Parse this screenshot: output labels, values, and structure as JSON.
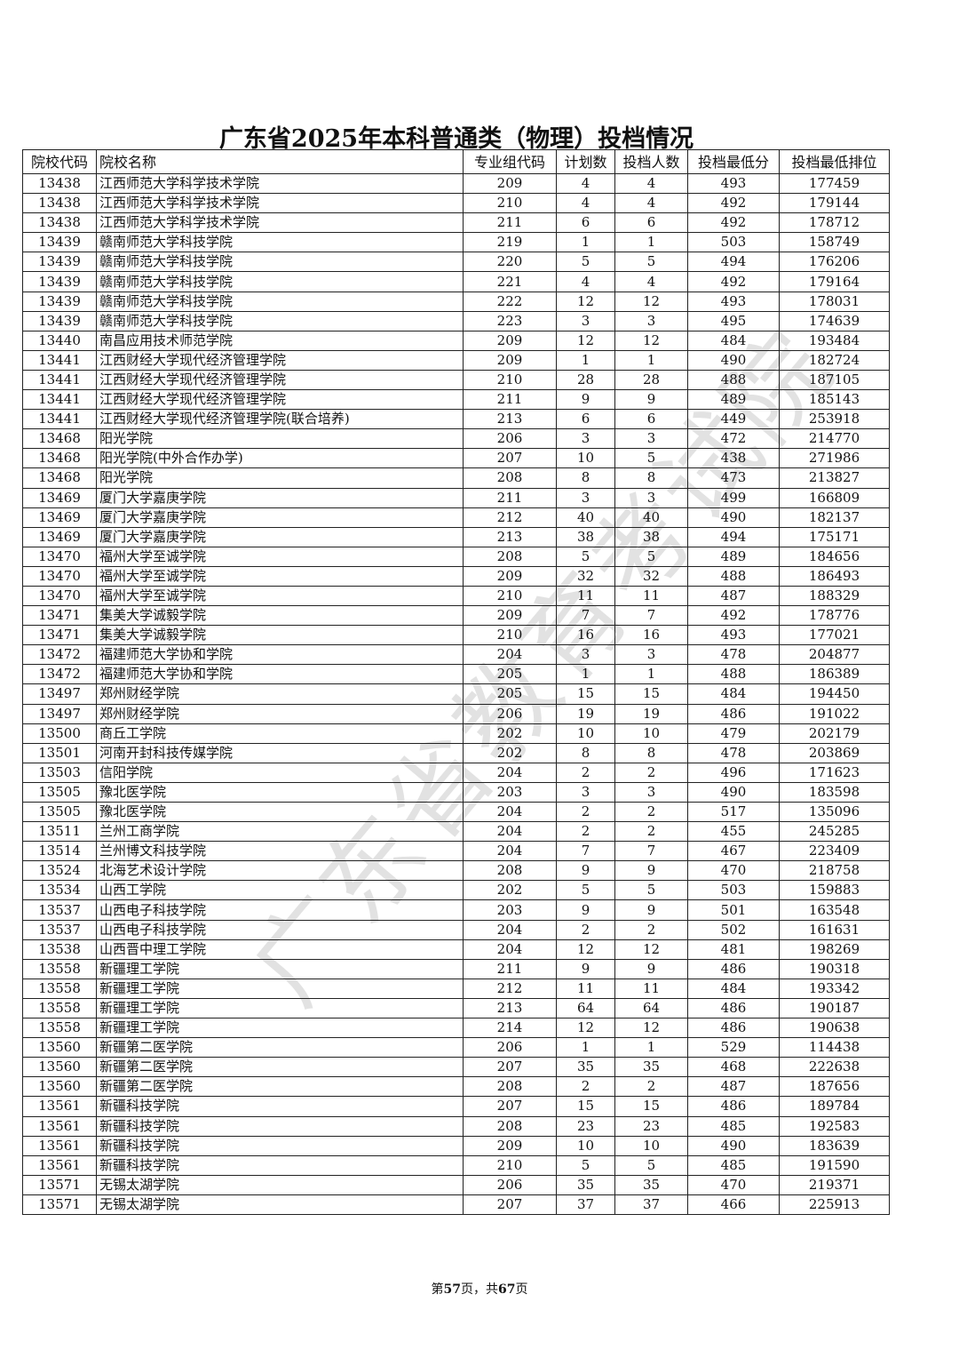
{
  "title": "广东省2025年本科普通类（物理）投档情况",
  "watermark": "广东省教育考试院",
  "columns": [
    "院校代码",
    "院校名称",
    "专业组代码",
    "计划数",
    "投档人数",
    "投档最低分",
    "投档最低排位"
  ],
  "rows": [
    [
      "13438",
      "江西师范大学科学技术学院",
      "209",
      "4",
      "4",
      "493",
      "177459"
    ],
    [
      "13438",
      "江西师范大学科学技术学院",
      "210",
      "4",
      "4",
      "492",
      "179144"
    ],
    [
      "13438",
      "江西师范大学科学技术学院",
      "211",
      "6",
      "6",
      "492",
      "178712"
    ],
    [
      "13439",
      "赣南师范大学科技学院",
      "219",
      "1",
      "1",
      "503",
      "158749"
    ],
    [
      "13439",
      "赣南师范大学科技学院",
      "220",
      "5",
      "5",
      "494",
      "176206"
    ],
    [
      "13439",
      "赣南师范大学科技学院",
      "221",
      "4",
      "4",
      "492",
      "179164"
    ],
    [
      "13439",
      "赣南师范大学科技学院",
      "222",
      "12",
      "12",
      "493",
      "178031"
    ],
    [
      "13439",
      "赣南师范大学科技学院",
      "223",
      "3",
      "3",
      "495",
      "174639"
    ],
    [
      "13440",
      "南昌应用技术师范学院",
      "209",
      "12",
      "12",
      "484",
      "193484"
    ],
    [
      "13441",
      "江西财经大学现代经济管理学院",
      "209",
      "1",
      "1",
      "490",
      "182724"
    ],
    [
      "13441",
      "江西财经大学现代经济管理学院",
      "210",
      "28",
      "28",
      "488",
      "187105"
    ],
    [
      "13441",
      "江西财经大学现代经济管理学院",
      "211",
      "9",
      "9",
      "489",
      "185143"
    ],
    [
      "13441",
      "江西财经大学现代经济管理学院(联合培养)",
      "213",
      "6",
      "6",
      "449",
      "253918"
    ],
    [
      "13468",
      "阳光学院",
      "206",
      "3",
      "3",
      "472",
      "214770"
    ],
    [
      "13468",
      "阳光学院(中外合作办学)",
      "207",
      "10",
      "5",
      "438",
      "271986"
    ],
    [
      "13468",
      "阳光学院",
      "208",
      "8",
      "8",
      "473",
      "213827"
    ],
    [
      "13469",
      "厦门大学嘉庚学院",
      "211",
      "3",
      "3",
      "499",
      "166809"
    ],
    [
      "13469",
      "厦门大学嘉庚学院",
      "212",
      "40",
      "40",
      "490",
      "182137"
    ],
    [
      "13469",
      "厦门大学嘉庚学院",
      "213",
      "38",
      "38",
      "494",
      "175171"
    ],
    [
      "13470",
      "福州大学至诚学院",
      "208",
      "5",
      "5",
      "489",
      "184656"
    ],
    [
      "13470",
      "福州大学至诚学院",
      "209",
      "32",
      "32",
      "488",
      "186493"
    ],
    [
      "13470",
      "福州大学至诚学院",
      "210",
      "11",
      "11",
      "487",
      "188329"
    ],
    [
      "13471",
      "集美大学诚毅学院",
      "209",
      "7",
      "7",
      "492",
      "178776"
    ],
    [
      "13471",
      "集美大学诚毅学院",
      "210",
      "16",
      "16",
      "493",
      "177021"
    ],
    [
      "13472",
      "福建师范大学协和学院",
      "204",
      "3",
      "3",
      "478",
      "204877"
    ],
    [
      "13472",
      "福建师范大学协和学院",
      "205",
      "1",
      "1",
      "488",
      "186389"
    ],
    [
      "13497",
      "郑州财经学院",
      "205",
      "15",
      "15",
      "484",
      "194450"
    ],
    [
      "13497",
      "郑州财经学院",
      "206",
      "19",
      "19",
      "486",
      "191022"
    ],
    [
      "13500",
      "商丘工学院",
      "202",
      "10",
      "10",
      "479",
      "202179"
    ],
    [
      "13501",
      "河南开封科技传媒学院",
      "202",
      "8",
      "8",
      "478",
      "203869"
    ],
    [
      "13503",
      "信阳学院",
      "204",
      "2",
      "2",
      "496",
      "171623"
    ],
    [
      "13505",
      "豫北医学院",
      "203",
      "3",
      "3",
      "490",
      "183598"
    ],
    [
      "13505",
      "豫北医学院",
      "204",
      "2",
      "2",
      "517",
      "135096"
    ],
    [
      "13511",
      "兰州工商学院",
      "204",
      "2",
      "2",
      "455",
      "245285"
    ],
    [
      "13514",
      "兰州博文科技学院",
      "204",
      "7",
      "7",
      "467",
      "223409"
    ],
    [
      "13524",
      "北海艺术设计学院",
      "208",
      "9",
      "9",
      "470",
      "218758"
    ],
    [
      "13534",
      "山西工学院",
      "202",
      "5",
      "5",
      "503",
      "159883"
    ],
    [
      "13537",
      "山西电子科技学院",
      "203",
      "9",
      "9",
      "501",
      "163548"
    ],
    [
      "13537",
      "山西电子科技学院",
      "204",
      "2",
      "2",
      "502",
      "161631"
    ],
    [
      "13538",
      "山西晋中理工学院",
      "204",
      "12",
      "12",
      "481",
      "198269"
    ],
    [
      "13558",
      "新疆理工学院",
      "211",
      "9",
      "9",
      "486",
      "190318"
    ],
    [
      "13558",
      "新疆理工学院",
      "212",
      "11",
      "11",
      "484",
      "193342"
    ],
    [
      "13558",
      "新疆理工学院",
      "213",
      "64",
      "64",
      "486",
      "190187"
    ],
    [
      "13558",
      "新疆理工学院",
      "214",
      "12",
      "12",
      "486",
      "190638"
    ],
    [
      "13560",
      "新疆第二医学院",
      "206",
      "1",
      "1",
      "529",
      "114438"
    ],
    [
      "13560",
      "新疆第二医学院",
      "207",
      "35",
      "35",
      "468",
      "222638"
    ],
    [
      "13560",
      "新疆第二医学院",
      "208",
      "2",
      "2",
      "487",
      "187656"
    ],
    [
      "13561",
      "新疆科技学院",
      "207",
      "15",
      "15",
      "486",
      "189784"
    ],
    [
      "13561",
      "新疆科技学院",
      "208",
      "23",
      "23",
      "485",
      "192583"
    ],
    [
      "13561",
      "新疆科技学院",
      "209",
      "10",
      "10",
      "490",
      "183639"
    ],
    [
      "13561",
      "新疆科技学院",
      "210",
      "5",
      "5",
      "485",
      "191590"
    ],
    [
      "13571",
      "无锡太湖学院",
      "206",
      "35",
      "35",
      "470",
      "219371"
    ],
    [
      "13571",
      "无锡太湖学院",
      "207",
      "37",
      "37",
      "466",
      "225913"
    ]
  ],
  "footer": {
    "prefix": "第",
    "page": "57",
    "middle": "页，共",
    "total": "67",
    "suffix": "页"
  }
}
